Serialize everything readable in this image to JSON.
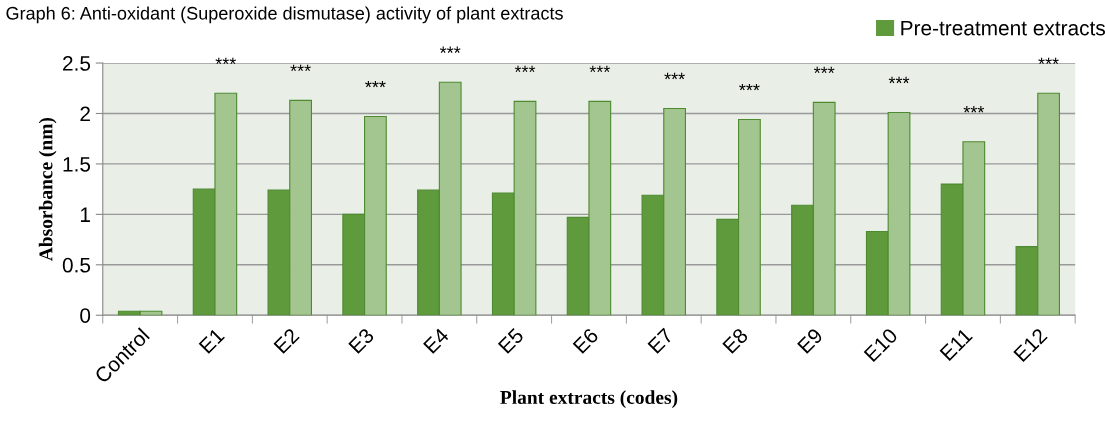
{
  "chart_data": {
    "type": "bar",
    "title": "Graph 6: Anti-oxidant (Superoxide dismutase) activity of plant extracts",
    "xlabel": "Plant extracts (codes)",
    "ylabel": "Absorbance (nm)",
    "categories": [
      "Control",
      "E1",
      "E2",
      "E3",
      "E4",
      "E5",
      "E6",
      "E7",
      "E8",
      "E9",
      "E10",
      "E11",
      "E12"
    ],
    "series": [
      {
        "name": "Pre-treatment extracts",
        "color": "#5f9a3d",
        "values": [
          0.04,
          1.25,
          1.24,
          1.0,
          1.24,
          1.21,
          0.97,
          1.19,
          0.95,
          1.09,
          0.83,
          1.3,
          0.68
        ]
      },
      {
        "color": "#a3c58f",
        "values": [
          0.04,
          2.2,
          2.13,
          1.97,
          2.31,
          2.12,
          2.12,
          2.05,
          1.94,
          2.11,
          2.01,
          1.72,
          2.2
        ]
      }
    ],
    "annotations": [
      "***",
      "***",
      "***",
      "***",
      "***",
      "***",
      "***",
      "***",
      "***",
      "***",
      "***",
      "***"
    ],
    "ylim": [
      0,
      2.5
    ],
    "yticks": [
      0,
      0.5,
      1,
      1.5,
      2,
      2.5
    ],
    "grid": "y",
    "legend": "top right"
  }
}
